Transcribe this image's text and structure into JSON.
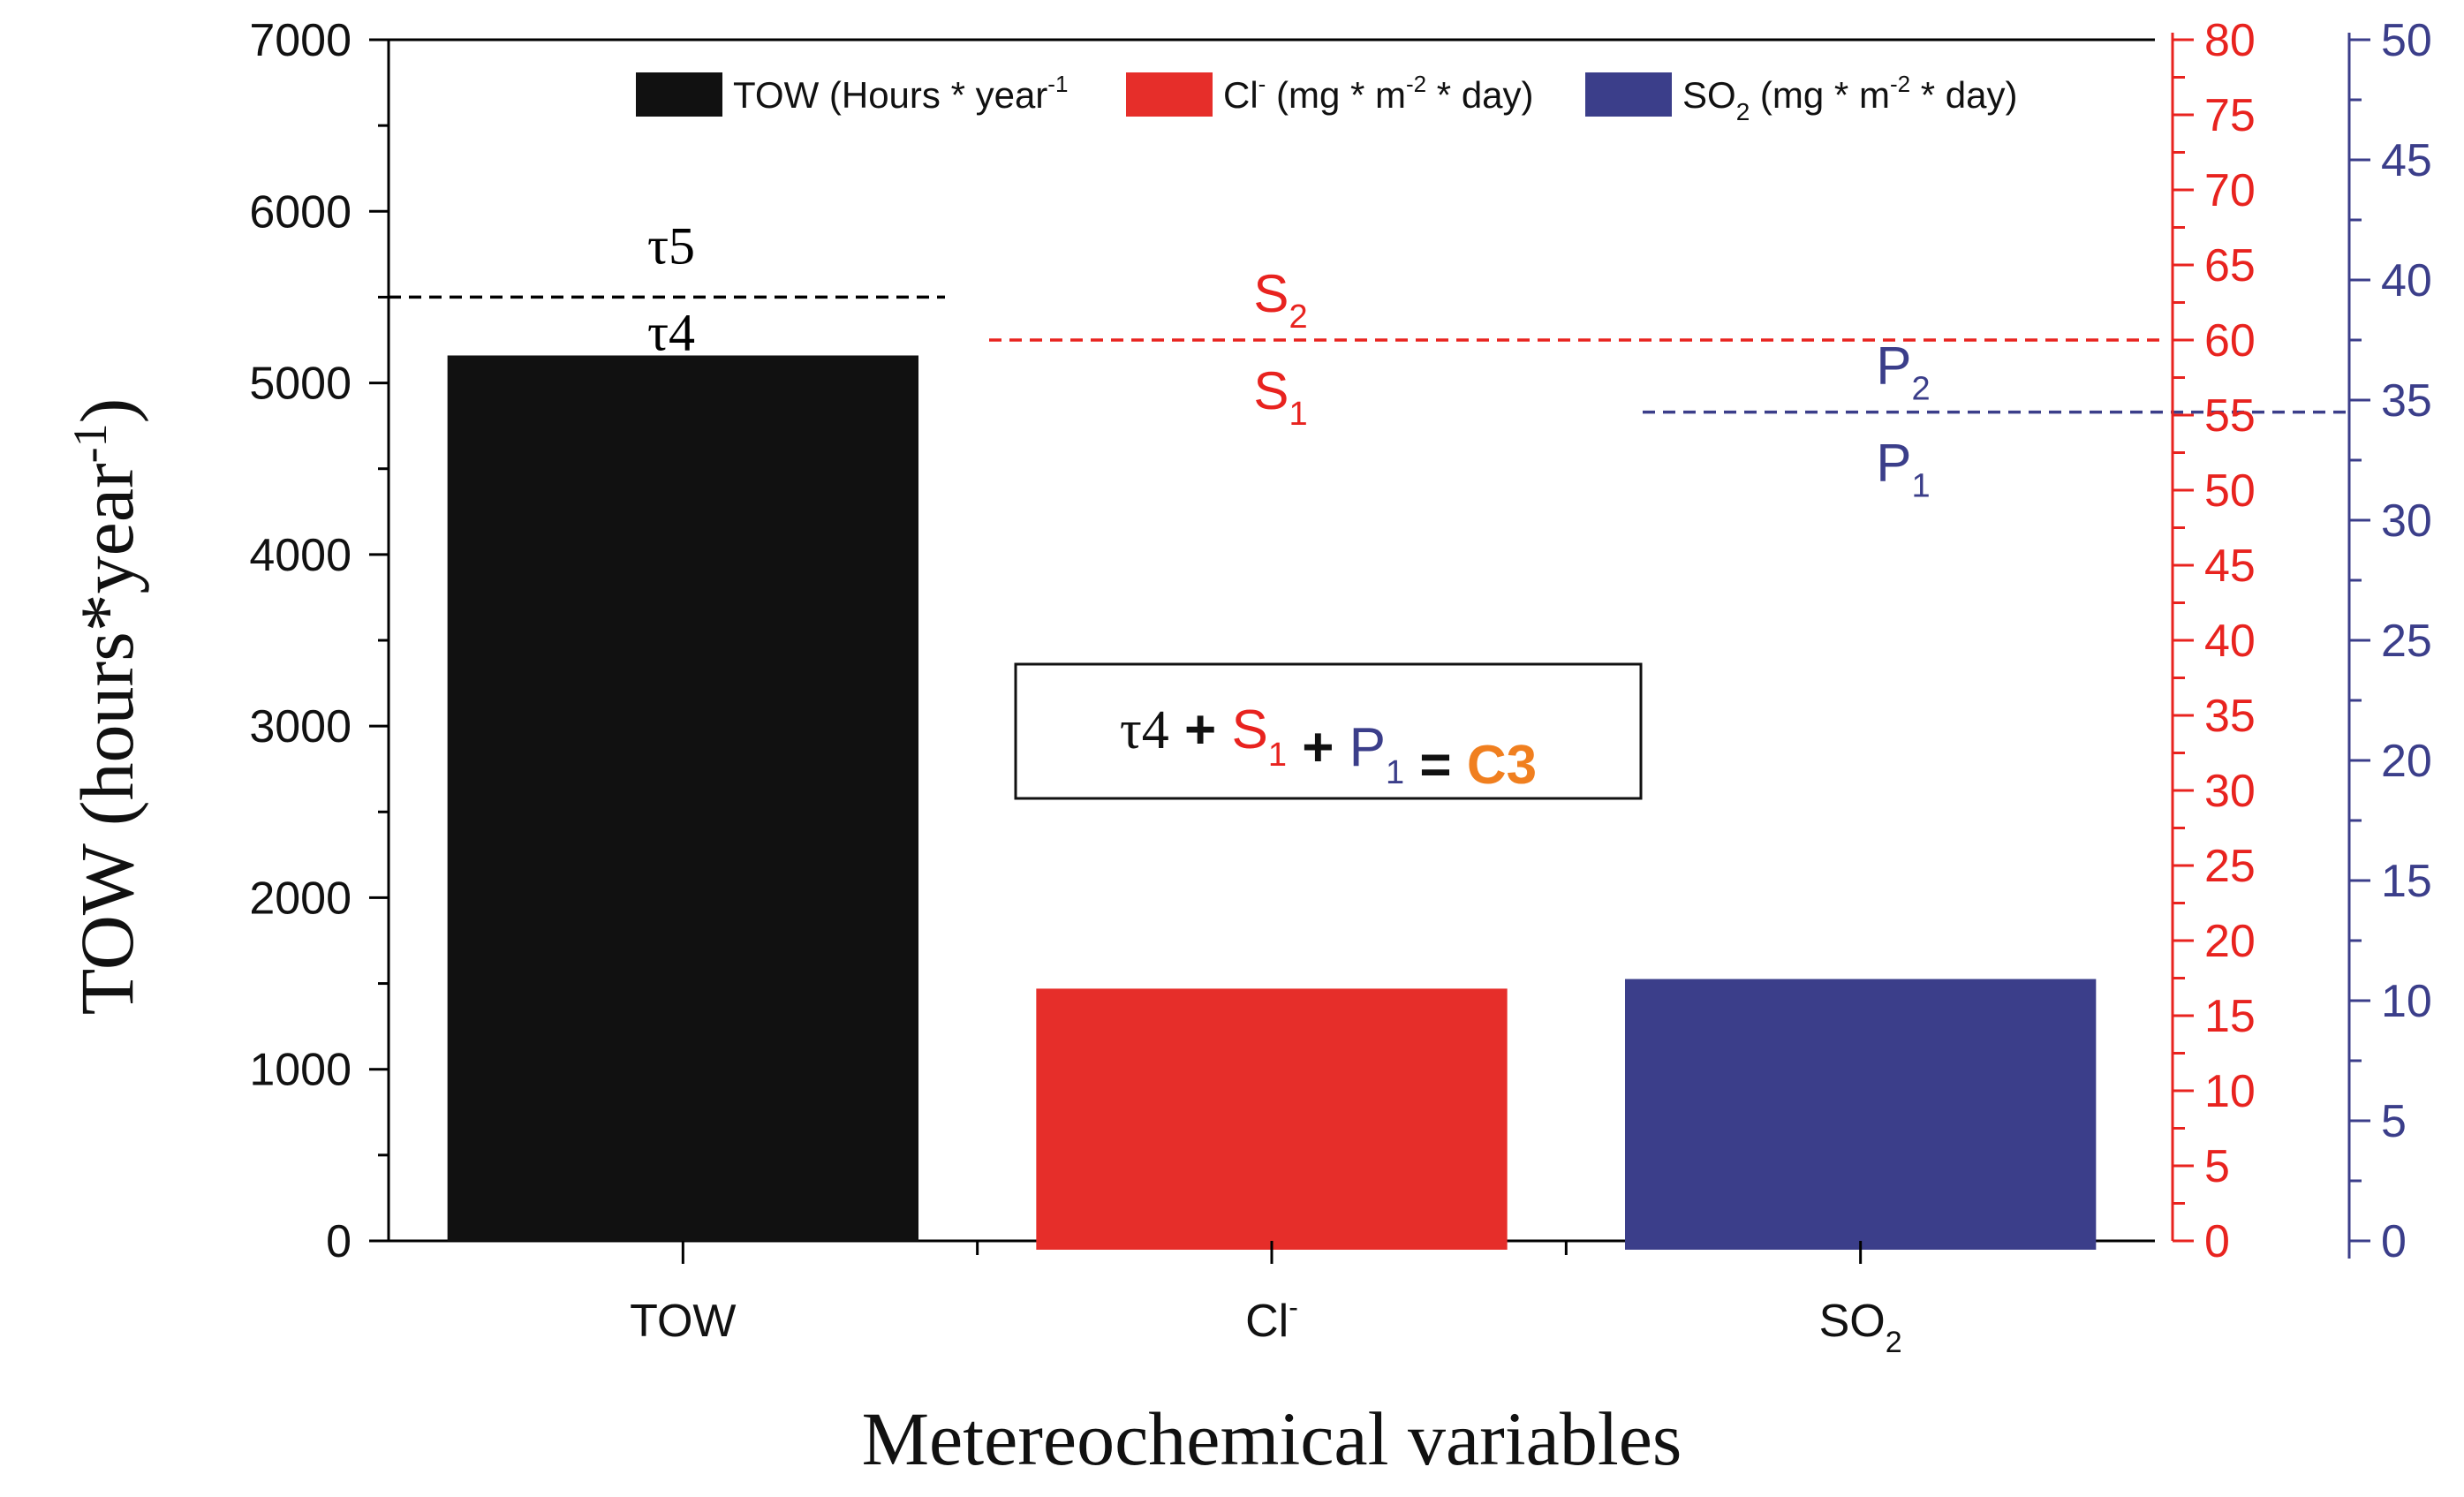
{
  "chart_data": {
    "type": "bar",
    "xlabel": "Metereochemical variables",
    "ylabel_left": {
      "main": "TOW (hours*year",
      "sup": "-1",
      "tail": ")"
    },
    "categories": [
      {
        "id": "tow",
        "label": "TOW",
        "sub": "",
        "sup": ""
      },
      {
        "id": "cl",
        "label": "Cl",
        "sub": "",
        "sup": "-"
      },
      {
        "id": "so2",
        "label": "SO",
        "sub": "2",
        "sup": ""
      }
    ],
    "axes": {
      "left": {
        "min": 0,
        "max": 7000,
        "major": 1000,
        "minor": 500,
        "color": "#000000"
      },
      "red": {
        "min": 0,
        "max": 80,
        "major": 5,
        "minor": 2.5,
        "color": "#e8231f"
      },
      "blue": {
        "min": 0,
        "max": 50,
        "major": 5,
        "minor": 2.5,
        "color": "#3b3e8a"
      }
    },
    "series": [
      {
        "category": "tow",
        "axis": "left",
        "value": 5160,
        "color": "#111111",
        "legend": {
          "main": "TOW (Hours * year",
          "sup": "-1",
          "tail": ""
        }
      },
      {
        "category": "cl",
        "axis": "red",
        "value": 16.8,
        "color": "#e62e2a",
        "legend": {
          "main": "Cl",
          "sup": "-",
          "tail": " (mg * m",
          "sup2": "-2",
          "tail2": " * day)"
        }
      },
      {
        "category": "so2",
        "axis": "blue",
        "value": 10.9,
        "color": "#3b3e8a",
        "legend": {
          "main": "SO",
          "sub": "2",
          "tail": " (mg * m",
          "sup2": "-2",
          "tail2": " * day)"
        }
      }
    ],
    "thresholds": [
      {
        "id": "tau",
        "axis": "left",
        "value": 5500,
        "color": "#000000",
        "above": "τ5",
        "below": "τ4",
        "font": "serif"
      },
      {
        "id": "s",
        "axis": "red",
        "value": 60,
        "color": "#e8231f",
        "above_main": "S",
        "above_sub": "2",
        "below_main": "S",
        "below_sub": "1",
        "font": "sans"
      },
      {
        "id": "p",
        "axis": "blue",
        "value": 34.5,
        "color": "#3b3e8a",
        "above_main": "P",
        "above_sub": "2",
        "below_main": "P",
        "below_sub": "1",
        "font": "sans"
      }
    ],
    "annotation": {
      "parts": [
        {
          "text": "τ4",
          "color": "#111111"
        },
        {
          "text": " + ",
          "color": "#111111"
        },
        {
          "text": "S",
          "sub": "1",
          "color": "#e8231f"
        },
        {
          "text": " + ",
          "color": "#111111"
        },
        {
          "text": "P",
          "sub": "1",
          "color": "#3b3e8a"
        },
        {
          "text": " = ",
          "color": "#111111"
        },
        {
          "text": "C3",
          "color": "#f07f1f",
          "bold": true
        }
      ]
    },
    "legend_position": "top"
  }
}
